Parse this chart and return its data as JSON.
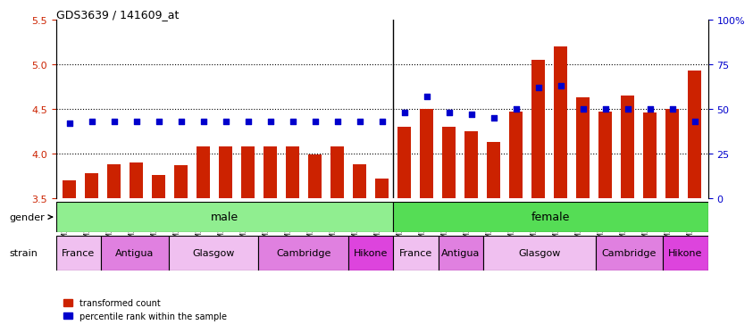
{
  "title": "GDS3639 / 141609_at",
  "samples": [
    "GSM231205",
    "GSM231206",
    "GSM231207",
    "GSM231211",
    "GSM231212",
    "GSM231213",
    "GSM231217",
    "GSM231218",
    "GSM231219",
    "GSM231223",
    "GSM231224",
    "GSM231225",
    "GSM231229",
    "GSM231230",
    "GSM231231",
    "GSM231208",
    "GSM231209",
    "GSM231210",
    "GSM231214",
    "GSM231215",
    "GSM231216",
    "GSM231220",
    "GSM231221",
    "GSM231222",
    "GSM231226",
    "GSM231227",
    "GSM231228",
    "GSM231232",
    "GSM231233"
  ],
  "bar_values": [
    3.7,
    3.78,
    3.88,
    3.9,
    3.76,
    3.87,
    4.08,
    4.08,
    4.08,
    4.08,
    4.08,
    3.99,
    4.08,
    3.88,
    3.72,
    4.3,
    4.5,
    4.3,
    4.25,
    4.13,
    4.47,
    5.05,
    5.2,
    4.63,
    4.47,
    4.65,
    4.46,
    4.5,
    4.93
  ],
  "percentile_values": [
    42,
    43,
    43,
    43,
    43,
    43,
    43,
    43,
    43,
    43,
    43,
    43,
    43,
    43,
    43,
    48,
    57,
    48,
    47,
    45,
    50,
    62,
    63,
    50,
    50,
    50,
    50,
    50,
    43
  ],
  "bar_color": "#cc2200",
  "percentile_color": "#0000cc",
  "ymin": 3.5,
  "ymax": 5.5,
  "yticks": [
    3.5,
    4.0,
    4.5,
    5.0,
    5.5
  ],
  "y2min": 0,
  "y2max": 100,
  "y2ticks": [
    0,
    25,
    50,
    75,
    100
  ],
  "gender_labels": [
    "male",
    "female"
  ],
  "gender_male_count": 15,
  "gender_female_count": 14,
  "gender_color": "#90ee90",
  "strain_labels_male": [
    "France",
    "Antigua",
    "Glasgow",
    "Cambridge",
    "Hikone"
  ],
  "strain_counts_male": [
    2,
    3,
    4,
    4,
    2
  ],
  "strain_labels_female": [
    "France",
    "Antigua",
    "Glasgow",
    "Cambridge",
    "Hikone"
  ],
  "strain_counts_female": [
    2,
    2,
    5,
    3,
    2
  ],
  "strain_colors": [
    "#e8b4e8",
    "#da80da",
    "#e8b4e8",
    "#da80da",
    "#e040e0"
  ],
  "legend_bar": "transformed count",
  "legend_dot": "percentile rank within the sample",
  "dotted_lines": [
    4.0,
    4.5,
    5.0
  ]
}
